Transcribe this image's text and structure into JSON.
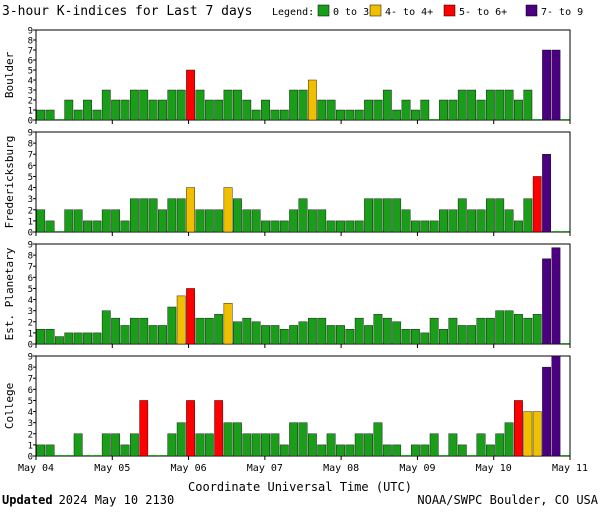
{
  "title": "3-hour K-indices for Last 7 days",
  "legend": {
    "label": "Legend:",
    "items": [
      {
        "label": "0 to 3+",
        "color": "#1a9e1a"
      },
      {
        "label": "4- to 4+",
        "color": "#f0c000"
      },
      {
        "label": "5- to 6+",
        "color": "#ff0000"
      },
      {
        "label": "7- to 9",
        "color": "#4b0082"
      }
    ]
  },
  "xlabel": "Coordinate Universal Time (UTC)",
  "footer": {
    "updated_label": "Updated",
    "updated_value": "2024 May 10 2130",
    "credit": "NOAA/SWPC Boulder, CO USA"
  },
  "chart_data": [
    {
      "type": "bar",
      "ylabel": "Boulder",
      "ylim": [
        0,
        9
      ],
      "yticks": [
        "0",
        "1",
        "2",
        "3",
        "4",
        "5",
        "6",
        "7",
        "8",
        "9"
      ],
      "xticks": [
        "May 04",
        "May 05",
        "May 06",
        "May 07",
        "May 08",
        "May 09",
        "May 10",
        "May 11"
      ],
      "values": [
        1,
        1,
        0,
        2,
        1,
        2,
        1,
        3,
        2,
        2,
        3,
        3,
        2,
        2,
        3,
        3,
        5,
        3,
        2,
        2,
        3,
        3,
        2,
        1,
        2,
        1,
        1,
        3,
        3,
        4,
        2,
        2,
        1,
        1,
        1,
        2,
        2,
        3,
        1,
        2,
        1,
        2,
        0,
        2,
        2,
        3,
        3,
        2,
        3,
        3,
        3,
        2,
        3,
        0,
        7,
        7,
        0
      ]
    },
    {
      "type": "bar",
      "ylabel": "Fredericksburg",
      "ylim": [
        0,
        9
      ],
      "yticks": [
        "0",
        "1",
        "2",
        "3",
        "4",
        "5",
        "6",
        "7",
        "8",
        "9"
      ],
      "xticks": [
        "May 04",
        "May 05",
        "May 06",
        "May 07",
        "May 08",
        "May 09",
        "May 10",
        "May 11"
      ],
      "values": [
        2,
        1,
        0,
        2,
        2,
        1,
        1,
        2,
        2,
        1,
        3,
        3,
        3,
        2,
        3,
        3,
        4,
        2,
        2,
        2,
        4,
        3,
        2,
        2,
        1,
        1,
        1,
        2,
        3,
        2,
        2,
        1,
        1,
        1,
        1,
        3,
        3,
        3,
        3,
        2,
        1,
        1,
        1,
        2,
        2,
        3,
        2,
        2,
        3,
        3,
        2,
        1,
        3,
        5,
        7,
        0,
        0
      ]
    },
    {
      "type": "bar",
      "ylabel": "Est. Planetary",
      "ylim": [
        0,
        9
      ],
      "yticks": [
        "0",
        "1",
        "2",
        "3",
        "4",
        "5",
        "6",
        "7",
        "8",
        "9"
      ],
      "xticks": [
        "May 04",
        "May 05",
        "May 06",
        "May 07",
        "May 08",
        "May 09",
        "May 10",
        "May 11"
      ],
      "values": [
        1.33,
        1.33,
        0.67,
        1,
        1,
        1,
        1,
        3,
        2.33,
        1.67,
        2.33,
        2.33,
        1.67,
        1.67,
        3.33,
        4.33,
        5,
        2.33,
        2.33,
        2.67,
        3.67,
        2,
        2.33,
        2,
        1.67,
        1.67,
        1.33,
        1.67,
        2,
        2.33,
        2.33,
        1.67,
        1.67,
        1.33,
        2.33,
        1.67,
        2.67,
        2.33,
        2,
        1.33,
        1.33,
        1,
        2.33,
        1.33,
        2.33,
        1.67,
        1.67,
        2.33,
        2.33,
        3,
        3,
        2.67,
        2.33,
        2.67,
        7.67,
        8.67,
        0
      ]
    },
    {
      "type": "bar",
      "ylabel": "College",
      "ylim": [
        0,
        9
      ],
      "yticks": [
        "0",
        "1",
        "2",
        "3",
        "4",
        "5",
        "6",
        "7",
        "8",
        "9"
      ],
      "xticks": [
        "May 04",
        "May 05",
        "May 06",
        "May 07",
        "May 08",
        "May 09",
        "May 10",
        "May 11"
      ],
      "values": [
        1,
        1,
        0,
        0,
        2,
        0,
        0,
        2,
        2,
        1,
        2,
        5,
        0,
        0,
        2,
        3,
        5,
        2,
        2,
        5,
        3,
        3,
        2,
        2,
        2,
        2,
        1,
        3,
        3,
        2,
        1,
        2,
        1,
        1,
        2,
        2,
        3,
        1,
        1,
        0,
        1,
        1,
        2,
        0,
        2,
        1,
        0,
        2,
        1,
        2,
        3,
        5,
        4,
        4,
        8,
        9,
        0
      ]
    }
  ]
}
